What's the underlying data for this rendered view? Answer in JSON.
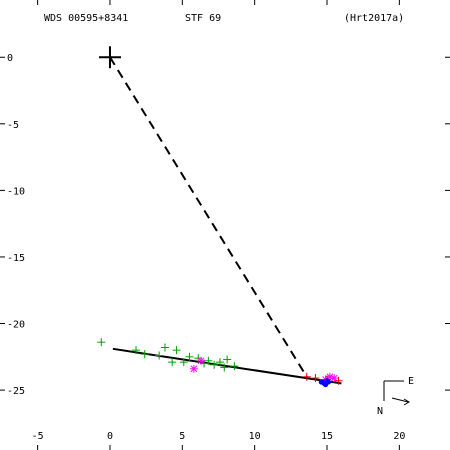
{
  "header": {
    "wds": "WDS 00595+8341",
    "disc": "STF  69",
    "ref": "(Hrt2017a)"
  },
  "chart_data": {
    "type": "scatter",
    "xlim": [
      -7.6,
      23.5
    ],
    "ylim": [
      -29.5,
      4.3
    ],
    "x_ticks": [
      -5,
      0,
      5,
      10,
      15,
      20
    ],
    "y_ticks": [
      0,
      -5,
      -10,
      -15,
      -20,
      -25
    ],
    "x_tick_labels": [
      "-5",
      "0",
      "5",
      "10",
      "15",
      "20"
    ],
    "y_tick_labels": [
      "0",
      "-5",
      "-10",
      "-15",
      "-20",
      "-25"
    ],
    "grid": false,
    "primary": {
      "x": 0,
      "y": 0
    },
    "connector": {
      "from": [
        0,
        0
      ],
      "to": [
        13.6,
        -24.0
      ]
    },
    "orbit_line": {
      "from": [
        0.2,
        -21.9
      ],
      "to": [
        16.0,
        -24.5
      ]
    },
    "colors": {
      "green": "#00a000",
      "red": "#dd0000",
      "magenta": "#ff00ff",
      "blue": "#0000ff",
      "line": "#000000"
    },
    "series": [
      {
        "marker": "plus",
        "color": "green",
        "points": [
          [
            -0.6,
            -21.4
          ],
          [
            1.8,
            -22.0
          ],
          [
            2.4,
            -22.3
          ],
          [
            3.4,
            -22.4
          ],
          [
            3.8,
            -21.8
          ],
          [
            4.3,
            -22.9
          ],
          [
            4.6,
            -22.0
          ],
          [
            5.1,
            -22.9
          ],
          [
            5.5,
            -22.5
          ],
          [
            6.1,
            -22.6
          ],
          [
            6.5,
            -23.0
          ],
          [
            6.8,
            -22.8
          ],
          [
            7.2,
            -23.1
          ],
          [
            7.6,
            -22.9
          ],
          [
            7.9,
            -23.3
          ],
          [
            8.1,
            -22.7
          ],
          [
            8.6,
            -23.2
          ]
        ]
      },
      {
        "marker": "star",
        "color": "magenta",
        "points": [
          [
            5.8,
            -23.4
          ],
          [
            6.3,
            -22.8
          ],
          [
            14.9,
            -24.2
          ],
          [
            15.2,
            -24.0
          ],
          [
            15.5,
            -24.1
          ]
        ]
      },
      {
        "marker": "plus",
        "color": "red",
        "points": [
          [
            13.6,
            -24.0
          ],
          [
            14.2,
            -24.1
          ],
          [
            15.0,
            -24.2
          ],
          [
            15.8,
            -24.3
          ]
        ]
      },
      {
        "marker": "dot",
        "color": "blue",
        "points": [
          [
            14.6,
            -24.4
          ],
          [
            14.8,
            -24.5
          ],
          [
            15.0,
            -24.3
          ],
          [
            15.1,
            -24.4
          ],
          [
            14.9,
            -24.6
          ]
        ]
      }
    ]
  },
  "compass": {
    "east": "E",
    "north": "N"
  }
}
